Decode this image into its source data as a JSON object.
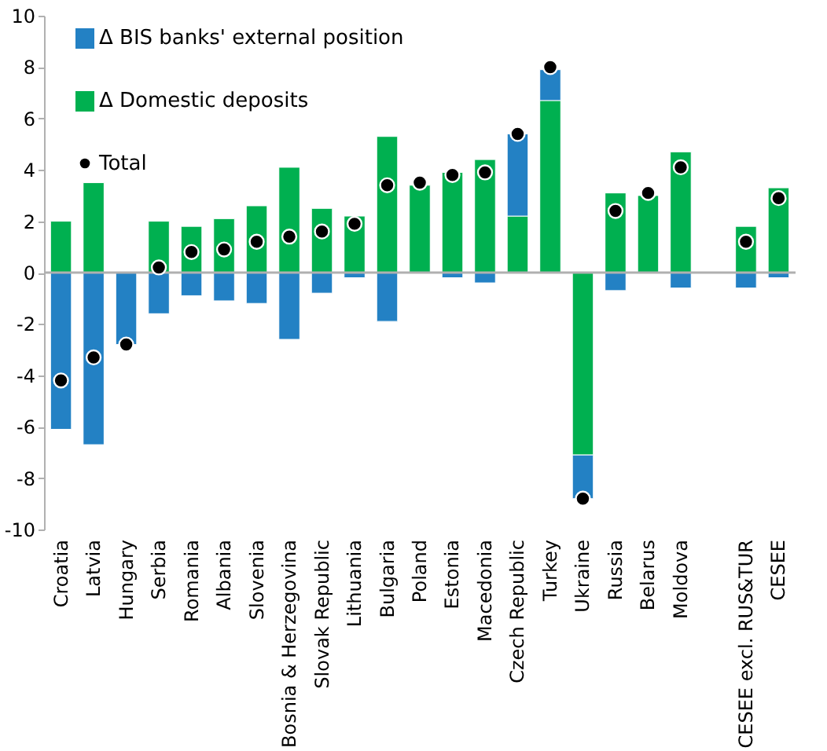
{
  "chart_data": {
    "type": "bar",
    "stacked": true,
    "categories": [
      "Croatia",
      "Latvia",
      "Hungary",
      "Serbia",
      "Romania",
      "Albania",
      "Slovenia",
      "Bosnia & Herzegovina",
      "Slovak Republic",
      "Lithuania",
      "Bulgaria",
      "Poland",
      "Estonia",
      "Macedonia",
      "Czech Republic",
      "Turkey",
      "Ukraine",
      "Russia",
      "Belarus",
      "Moldova",
      null,
      "CESEE excl. RUS&TUR",
      "CESEE"
    ],
    "series": [
      {
        "name": "Δ Domestic deposits",
        "color": "#00b050",
        "values": [
          2.0,
          3.5,
          null,
          2.0,
          1.8,
          2.1,
          2.6,
          4.1,
          2.5,
          2.2,
          5.3,
          3.4,
          3.9,
          4.4,
          2.2,
          6.7,
          -7.1,
          3.1,
          3.0,
          4.7,
          null,
          1.8,
          3.3
        ]
      },
      {
        "name": "Δ BIS banks' external position",
        "color": "#2381c4",
        "values": [
          -6.1,
          -6.7,
          -2.8,
          -1.6,
          -0.9,
          -1.1,
          -1.2,
          -2.6,
          -0.8,
          -0.2,
          -1.9,
          null,
          -0.2,
          -0.4,
          3.2,
          1.2,
          -1.7,
          -0.7,
          null,
          -0.6,
          null,
          -0.6,
          -0.2
        ]
      },
      {
        "name": "Total",
        "type": "scatter",
        "marker": "circle",
        "color": "#000000",
        "values": [
          -4.2,
          -3.3,
          -2.8,
          0.2,
          0.8,
          0.9,
          1.2,
          1.4,
          1.6,
          1.9,
          3.4,
          3.5,
          3.8,
          3.9,
          5.4,
          8.0,
          -8.8,
          2.4,
          3.1,
          4.1,
          null,
          1.2,
          2.9
        ]
      }
    ],
    "ylim": [
      -10,
      10
    ],
    "yticks": [
      -10,
      -8,
      -6,
      -4,
      -2,
      0,
      2,
      4,
      6,
      8,
      10
    ],
    "ref_lines": [
      {
        "axis": "y",
        "value": 0,
        "color": "#b0b0b0"
      }
    ],
    "grid": false,
    "legend": "top left"
  }
}
